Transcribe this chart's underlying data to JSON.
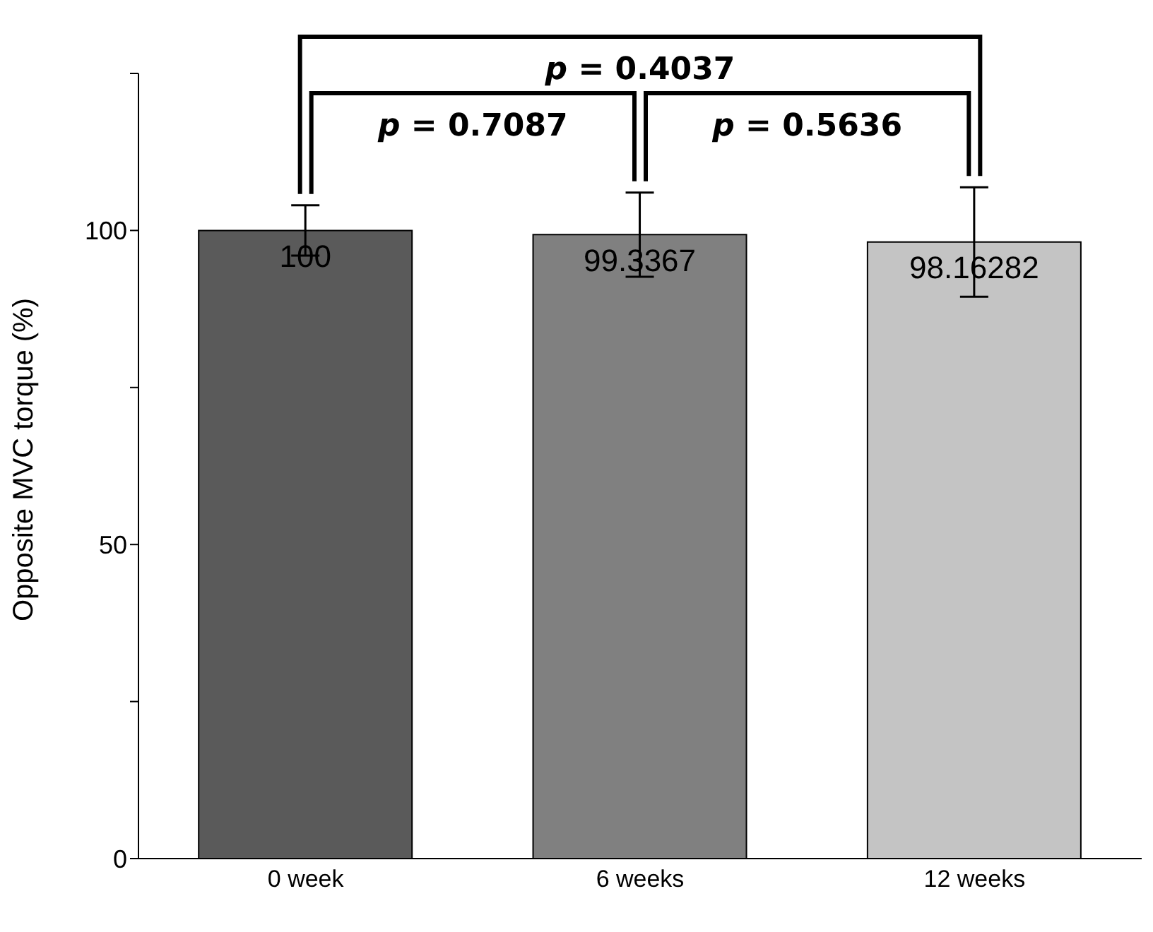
{
  "chart_data": {
    "type": "bar",
    "ylabel": "Opposite MVC torque (%)",
    "categories": [
      "0 week",
      "6 weeks",
      "12 weeks"
    ],
    "values": [
      100,
      99.3367,
      98.16282
    ],
    "colors": [
      "#5a5a5a",
      "#808080",
      "#c4c4c4"
    ],
    "errors": [
      4,
      6.7,
      8.7
    ],
    "data_labels": true,
    "ylim": [
      0,
      125
    ],
    "yticks": [
      0,
      {
        "value": 25,
        "label": null
      },
      50,
      {
        "value": 75,
        "label": null
      },
      100,
      {
        "value": 125,
        "label": null
      }
    ],
    "grid": false,
    "legend": false,
    "annotations": [
      "p = 0.4037",
      "p = 0.7087",
      "p = 0.5636"
    ]
  }
}
